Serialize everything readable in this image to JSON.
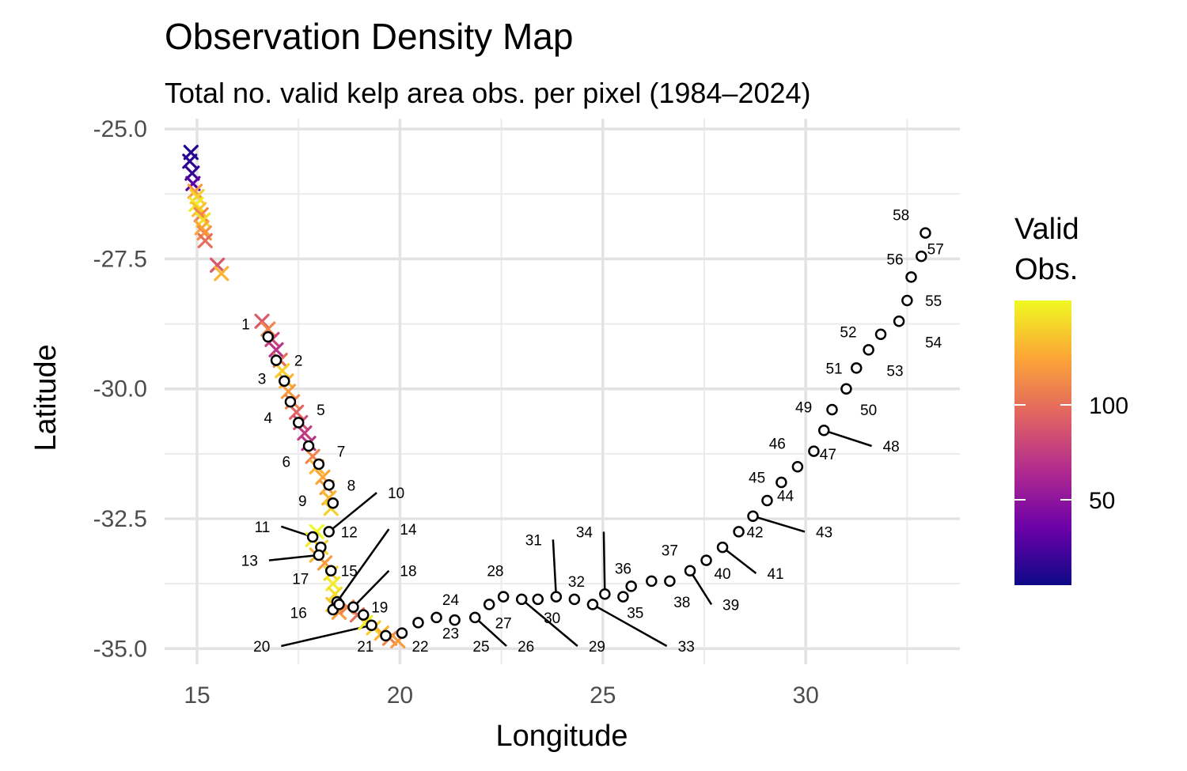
{
  "chart_data": {
    "type": "scatter",
    "title": "Observation Density Map",
    "subtitle": "Total no. valid kelp area obs. per pixel (1984–2024)",
    "xlabel": "Longitude",
    "ylabel": "Latitude",
    "xlim": [
      14.2,
      33.8
    ],
    "ylim": [
      -35.3,
      -24.8
    ],
    "x_ticks": [
      15,
      20,
      25,
      30
    ],
    "x_tick_labels": [
      "15",
      "20",
      "25",
      "30"
    ],
    "y_ticks": [
      -25.0,
      -27.5,
      -30.0,
      -32.5,
      -35.0
    ],
    "y_tick_labels": [
      "-25.0",
      "-27.5",
      "-30.0",
      "-32.5",
      "-35.0"
    ],
    "grid": true,
    "legend": {
      "title_lines": [
        "Valid",
        "Obs."
      ],
      "ticks": [
        50,
        100
      ],
      "tick_labels": [
        "50",
        "100"
      ],
      "range": [
        5,
        155
      ],
      "colormap": [
        "#0d0887",
        "#6a00a8",
        "#b12a90",
        "#e16462",
        "#fca636",
        "#f0f921"
      ],
      "placement": "right"
    },
    "pixel_observations": {
      "marker": "x",
      "points": [
        {
          "x": 14.85,
          "y": -25.45,
          "value": 12
        },
        {
          "x": 14.82,
          "y": -25.62,
          "value": 15
        },
        {
          "x": 14.88,
          "y": -25.85,
          "value": 18
        },
        {
          "x": 14.9,
          "y": -26.05,
          "value": 30
        },
        {
          "x": 14.95,
          "y": -26.2,
          "value": 120
        },
        {
          "x": 15.0,
          "y": -26.3,
          "value": 140
        },
        {
          "x": 14.98,
          "y": -26.45,
          "value": 150
        },
        {
          "x": 15.05,
          "y": -26.55,
          "value": 135
        },
        {
          "x": 15.1,
          "y": -26.65,
          "value": 110
        },
        {
          "x": 15.15,
          "y": -26.75,
          "value": 145
        },
        {
          "x": 15.12,
          "y": -26.9,
          "value": 125
        },
        {
          "x": 15.18,
          "y": -27.0,
          "value": 115
        },
        {
          "x": 15.2,
          "y": -27.15,
          "value": 100
        },
        {
          "x": 15.5,
          "y": -27.62,
          "value": 90
        },
        {
          "x": 15.6,
          "y": -27.78,
          "value": 130
        },
        {
          "x": 16.6,
          "y": -28.7,
          "value": 90
        },
        {
          "x": 16.75,
          "y": -28.85,
          "value": 110
        },
        {
          "x": 16.85,
          "y": -29.05,
          "value": 80
        },
        {
          "x": 16.95,
          "y": -29.25,
          "value": 70
        },
        {
          "x": 17.05,
          "y": -29.45,
          "value": 100
        },
        {
          "x": 17.1,
          "y": -29.65,
          "value": 140
        },
        {
          "x": 17.2,
          "y": -29.85,
          "value": 130
        },
        {
          "x": 17.25,
          "y": -30.05,
          "value": 120
        },
        {
          "x": 17.35,
          "y": -30.25,
          "value": 110
        },
        {
          "x": 17.45,
          "y": -30.45,
          "value": 95
        },
        {
          "x": 17.55,
          "y": -30.65,
          "value": 85
        },
        {
          "x": 17.65,
          "y": -30.85,
          "value": 75
        },
        {
          "x": 17.75,
          "y": -31.05,
          "value": 70
        },
        {
          "x": 17.85,
          "y": -31.3,
          "value": 110
        },
        {
          "x": 17.95,
          "y": -31.5,
          "value": 130
        },
        {
          "x": 18.1,
          "y": -31.7,
          "value": 125
        },
        {
          "x": 18.2,
          "y": -31.9,
          "value": 120
        },
        {
          "x": 18.25,
          "y": -32.1,
          "value": 130
        },
        {
          "x": 18.3,
          "y": -32.3,
          "value": 140
        },
        {
          "x": 17.95,
          "y": -32.75,
          "value": 155
        },
        {
          "x": 17.85,
          "y": -32.9,
          "value": 150
        },
        {
          "x": 18.05,
          "y": -33.05,
          "value": 140
        },
        {
          "x": 17.95,
          "y": -33.2,
          "value": 130
        },
        {
          "x": 18.15,
          "y": -33.35,
          "value": 120
        },
        {
          "x": 18.3,
          "y": -33.55,
          "value": 140
        },
        {
          "x": 18.35,
          "y": -33.75,
          "value": 150
        },
        {
          "x": 18.4,
          "y": -33.95,
          "value": 145
        },
        {
          "x": 18.35,
          "y": -34.15,
          "value": 135
        },
        {
          "x": 18.5,
          "y": -34.3,
          "value": 120
        },
        {
          "x": 18.7,
          "y": -34.2,
          "value": 110
        },
        {
          "x": 18.95,
          "y": -34.35,
          "value": 100
        },
        {
          "x": 19.15,
          "y": -34.5,
          "value": 150
        },
        {
          "x": 19.35,
          "y": -34.6,
          "value": 140
        },
        {
          "x": 19.55,
          "y": -34.7,
          "value": 130
        },
        {
          "x": 19.75,
          "y": -34.8,
          "value": 110
        },
        {
          "x": 19.95,
          "y": -34.85,
          "value": 120
        }
      ]
    },
    "sites": {
      "marker": "open-circle",
      "points": [
        {
          "label": "1",
          "x": 16.75,
          "y": -29.0,
          "label_x": 16.2,
          "label_y": -28.75,
          "leader": false
        },
        {
          "label": "2",
          "x": 16.95,
          "y": -29.45,
          "label_x": 17.5,
          "label_y": -29.45,
          "leader": false
        },
        {
          "label": "3",
          "x": 17.15,
          "y": -29.85,
          "label_x": 16.6,
          "label_y": -29.8,
          "leader": false
        },
        {
          "label": "4",
          "x": 17.3,
          "y": -30.25,
          "label_x": 16.75,
          "label_y": -30.55,
          "leader": false
        },
        {
          "label": "5",
          "x": 17.5,
          "y": -30.65,
          "label_x": 18.05,
          "label_y": -30.4,
          "leader": false
        },
        {
          "label": "6",
          "x": 17.75,
          "y": -31.1,
          "label_x": 17.2,
          "label_y": -31.4,
          "leader": false
        },
        {
          "label": "7",
          "x": 18.0,
          "y": -31.45,
          "label_x": 18.55,
          "label_y": -31.2,
          "leader": false
        },
        {
          "label": "8",
          "x": 18.25,
          "y": -31.85,
          "label_x": 18.8,
          "label_y": -31.85,
          "leader": false
        },
        {
          "label": "9",
          "x": 18.35,
          "y": -32.2,
          "label_x": 17.6,
          "label_y": -32.15,
          "leader": false
        },
        {
          "label": "10",
          "x": 18.25,
          "y": -32.75,
          "label_x": 19.7,
          "label_y": -32.0,
          "leader": true
        },
        {
          "label": "11",
          "x": 17.85,
          "y": -32.85,
          "label_x": 16.8,
          "label_y": -32.65,
          "leader": true
        },
        {
          "label": "12",
          "x": 18.05,
          "y": -33.05,
          "label_x": 18.75,
          "label_y": -32.75,
          "leader": false
        },
        {
          "label": "13",
          "x": 18.0,
          "y": -33.2,
          "label_x": 16.5,
          "label_y": -33.3,
          "leader": true
        },
        {
          "label": "14",
          "x": 18.45,
          "y": -34.1,
          "label_x": 20.0,
          "label_y": -32.7,
          "leader": true
        },
        {
          "label": "15",
          "x": 18.3,
          "y": -33.5,
          "label_x": 18.75,
          "label_y": -33.5,
          "leader": false
        },
        {
          "label": "16",
          "x": 18.35,
          "y": -34.25,
          "label_x": 17.5,
          "label_y": -34.3,
          "leader": false
        },
        {
          "label": "17",
          "x": 18.5,
          "y": -34.15,
          "label_x": 17.55,
          "label_y": -33.65,
          "leader": false
        },
        {
          "label": "18",
          "x": 18.85,
          "y": -34.2,
          "label_x": 20.0,
          "label_y": -33.5,
          "leader": true
        },
        {
          "label": "19",
          "x": 19.1,
          "y": -34.35,
          "label_x": 19.5,
          "label_y": -34.2,
          "leader": false
        },
        {
          "label": "20",
          "x": 19.3,
          "y": -34.55,
          "label_x": 16.8,
          "label_y": -34.95,
          "leader": true
        },
        {
          "label": "21",
          "x": 19.65,
          "y": -34.75,
          "label_x": 19.15,
          "label_y": -34.95,
          "leader": false
        },
        {
          "label": "22",
          "x": 20.05,
          "y": -34.7,
          "label_x": 20.5,
          "label_y": -34.95,
          "leader": false
        },
        {
          "label": "23",
          "x": 20.45,
          "y": -34.5,
          "label_x": 21.25,
          "label_y": -34.7,
          "leader": false
        },
        {
          "label": "24",
          "x": 20.9,
          "y": -34.4,
          "label_x": 21.25,
          "label_y": -34.05,
          "leader": false
        },
        {
          "label": "25",
          "x": 21.35,
          "y": -34.45,
          "label_x": 22.0,
          "label_y": -34.95,
          "leader": false
        },
        {
          "label": "26",
          "x": 21.85,
          "y": -34.4,
          "label_x": 22.9,
          "label_y": -34.95,
          "leader": true
        },
        {
          "label": "27",
          "x": 22.2,
          "y": -34.15,
          "label_x": 22.55,
          "label_y": -34.5,
          "leader": false
        },
        {
          "label": "28",
          "x": 22.55,
          "y": -34.0,
          "label_x": 22.35,
          "label_y": -33.5,
          "leader": false
        },
        {
          "label": "29",
          "x": 23.0,
          "y": -34.05,
          "label_x": 24.65,
          "label_y": -34.95,
          "leader": true
        },
        {
          "label": "30",
          "x": 23.4,
          "y": -34.05,
          "label_x": 23.75,
          "label_y": -34.4,
          "leader": false
        },
        {
          "label": "31",
          "x": 23.85,
          "y": -34.0,
          "label_x": 23.5,
          "label_y": -32.9,
          "leader": true
        },
        {
          "label": "32",
          "x": 24.3,
          "y": -34.05,
          "label_x": 24.35,
          "label_y": -33.7,
          "leader": false
        },
        {
          "label": "33",
          "x": 24.75,
          "y": -34.15,
          "label_x": 26.85,
          "label_y": -34.95,
          "leader": true
        },
        {
          "label": "34",
          "x": 25.05,
          "y": -33.95,
          "label_x": 24.75,
          "label_y": -32.75,
          "leader": true
        },
        {
          "label": "35",
          "x": 25.5,
          "y": -34.0,
          "label_x": 25.8,
          "label_y": -34.3,
          "leader": false
        },
        {
          "label": "36",
          "x": 25.7,
          "y": -33.8,
          "label_x": 25.5,
          "label_y": -33.45,
          "leader": false
        },
        {
          "label": "37",
          "x": 26.2,
          "y": -33.7,
          "label_x": 26.65,
          "label_y": -33.1,
          "leader": false
        },
        {
          "label": "38",
          "x": 26.65,
          "y": -33.7,
          "label_x": 26.95,
          "label_y": -34.1,
          "leader": false
        },
        {
          "label": "39",
          "x": 27.15,
          "y": -33.5,
          "label_x": 27.95,
          "label_y": -34.15,
          "leader": true
        },
        {
          "label": "40",
          "x": 27.55,
          "y": -33.3,
          "label_x": 27.95,
          "label_y": -33.55,
          "leader": false
        },
        {
          "label": "41",
          "x": 27.95,
          "y": -33.05,
          "label_x": 29.05,
          "label_y": -33.55,
          "leader": true
        },
        {
          "label": "42",
          "x": 28.35,
          "y": -32.75,
          "label_x": 28.75,
          "label_y": -32.75,
          "leader": false
        },
        {
          "label": "43",
          "x": 28.7,
          "y": -32.45,
          "label_x": 30.25,
          "label_y": -32.75,
          "leader": true
        },
        {
          "label": "44",
          "x": 29.05,
          "y": -32.15,
          "label_x": 29.5,
          "label_y": -32.05,
          "leader": false
        },
        {
          "label": "45",
          "x": 29.4,
          "y": -31.8,
          "label_x": 28.8,
          "label_y": -31.7,
          "leader": false
        },
        {
          "label": "46",
          "x": 29.8,
          "y": -31.5,
          "label_x": 29.3,
          "label_y": -31.05,
          "leader": false
        },
        {
          "label": "47",
          "x": 30.2,
          "y": -31.2,
          "label_x": 30.55,
          "label_y": -31.25,
          "leader": false
        },
        {
          "label": "48",
          "x": 30.45,
          "y": -30.8,
          "label_x": 31.9,
          "label_y": -31.1,
          "leader": true
        },
        {
          "label": "49",
          "x": 30.65,
          "y": -30.4,
          "label_x": 29.95,
          "label_y": -30.35,
          "leader": false
        },
        {
          "label": "50",
          "x": 31.0,
          "y": -30.0,
          "label_x": 31.55,
          "label_y": -30.4,
          "leader": false
        },
        {
          "label": "51",
          "x": 31.25,
          "y": -29.6,
          "label_x": 30.7,
          "label_y": -29.6,
          "leader": false
        },
        {
          "label": "52",
          "x": 31.55,
          "y": -29.25,
          "label_x": 31.05,
          "label_y": -28.9,
          "leader": false
        },
        {
          "label": "53",
          "x": 31.85,
          "y": -28.95,
          "label_x": 32.2,
          "label_y": -29.65,
          "leader": false
        },
        {
          "label": "54",
          "x": 32.3,
          "y": -28.7,
          "label_x": 33.15,
          "label_y": -29.1,
          "leader": false
        },
        {
          "label": "55",
          "x": 32.5,
          "y": -28.3,
          "label_x": 33.15,
          "label_y": -28.3,
          "leader": false
        },
        {
          "label": "56",
          "x": 32.6,
          "y": -27.85,
          "label_x": 32.2,
          "label_y": -27.5,
          "leader": false
        },
        {
          "label": "57",
          "x": 32.85,
          "y": -27.45,
          "label_x": 33.2,
          "label_y": -27.3,
          "leader": false
        },
        {
          "label": "58",
          "x": 32.95,
          "y": -27.0,
          "label_x": 32.35,
          "label_y": -26.65,
          "leader": false
        }
      ]
    }
  }
}
